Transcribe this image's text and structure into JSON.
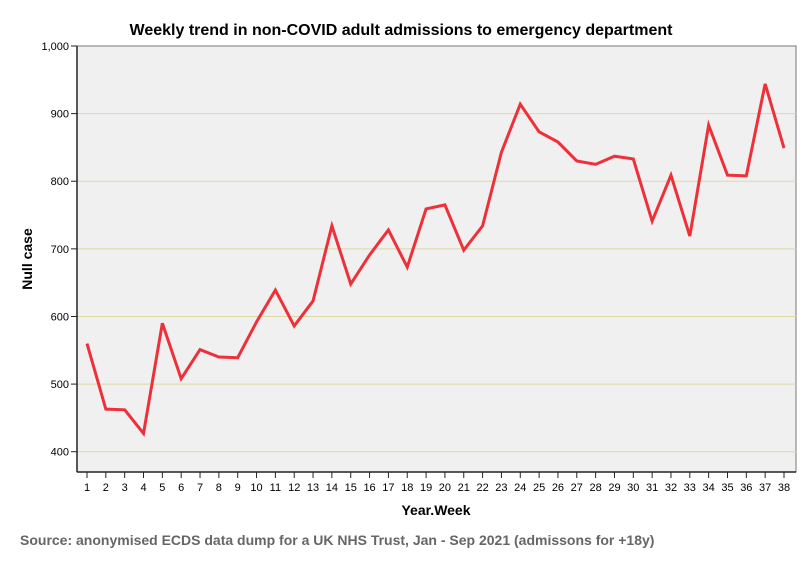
{
  "chart_data": {
    "type": "line",
    "title": "Weekly trend in non-COVID adult admissions to emergency department",
    "xlabel": "Year.Week",
    "ylabel": "Null case",
    "ylim": [
      370,
      1000
    ],
    "yticks": [
      400,
      500,
      600,
      700,
      800,
      900,
      1000
    ],
    "ytick_labels": [
      "400",
      "500",
      "600",
      "700",
      "800",
      "900",
      "1,000"
    ],
    "grid": true,
    "x": [
      1,
      2,
      3,
      4,
      5,
      6,
      7,
      8,
      9,
      10,
      11,
      12,
      13,
      14,
      15,
      16,
      17,
      18,
      19,
      20,
      21,
      22,
      23,
      24,
      25,
      26,
      27,
      28,
      29,
      30,
      31,
      32,
      33,
      34,
      35,
      36,
      37,
      38
    ],
    "series": [
      {
        "name": "Null case",
        "color": "#ee3039",
        "values": [
          560,
          463,
          462,
          427,
          590,
          508,
          551,
          540,
          539,
          592,
          639,
          586,
          623,
          734,
          648,
          691,
          728,
          673,
          759,
          765,
          698,
          734,
          843,
          914,
          873,
          858,
          830,
          825,
          837,
          833,
          741,
          809,
          719,
          883,
          809,
          808,
          944,
          849
        ]
      }
    ]
  },
  "source": "Source: anonymised ECDS data dump for a UK NHS Trust, Jan - Sep 2021 (admissons for +18y)"
}
